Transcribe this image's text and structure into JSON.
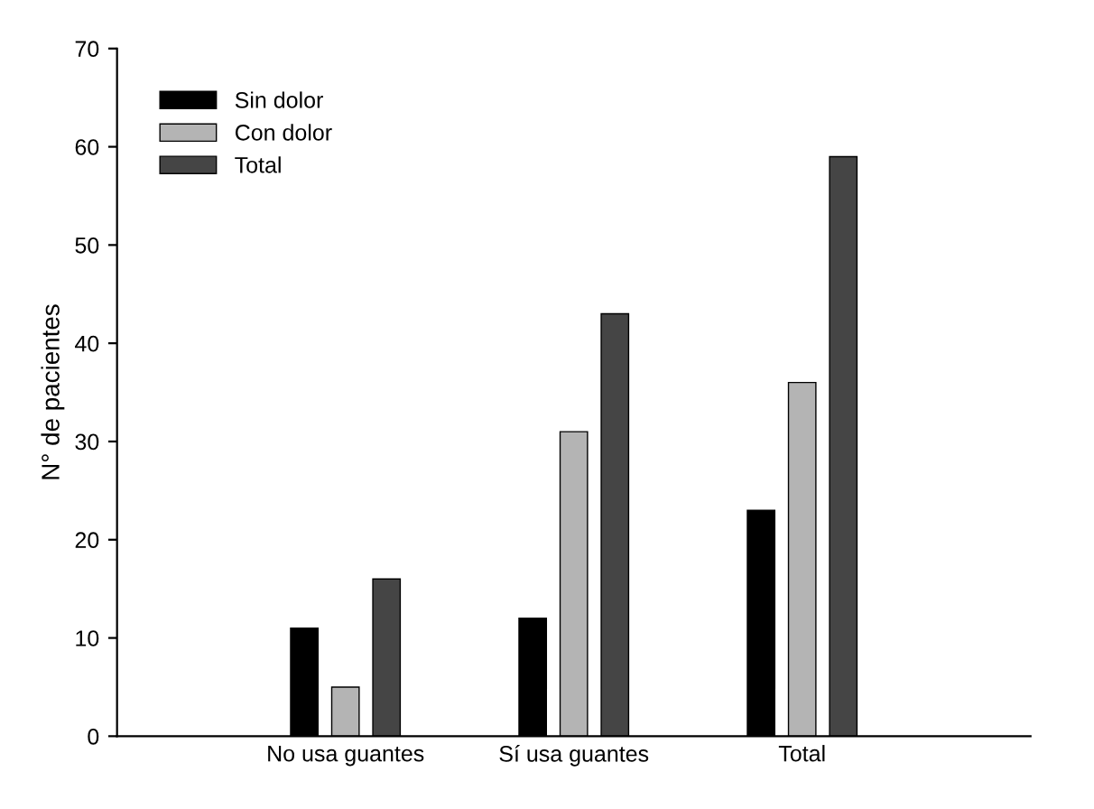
{
  "chart_data": {
    "type": "bar",
    "ylabel": "N° de pacientes",
    "categories": [
      "No usa guantes",
      "Sí usa guantes",
      "Total"
    ],
    "series": [
      {
        "name": "Sin dolor",
        "color": "#000000",
        "values": [
          11,
          12,
          23
        ]
      },
      {
        "name": "Con dolor",
        "color": "#b4b4b4",
        "values": [
          5,
          31,
          36
        ]
      },
      {
        "name": "Total",
        "color": "#454545",
        "values": [
          16,
          43,
          59
        ]
      }
    ],
    "ylim": [
      0,
      70
    ],
    "yticks": [
      0,
      10,
      20,
      30,
      40,
      50,
      60,
      70
    ],
    "grid": false,
    "legend": "top left"
  }
}
